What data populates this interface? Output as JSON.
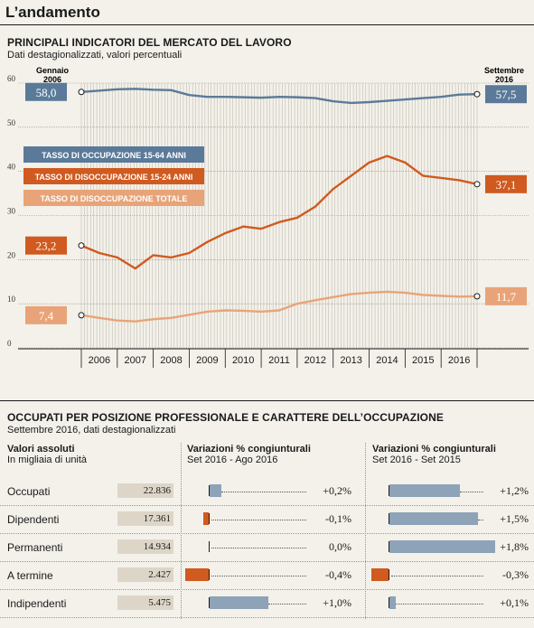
{
  "section_title": "L’andamento",
  "chart_title": "PRINCIPALI INDICATORI DEL MERCATO DEL LAVORO",
  "chart_subtitle": "Dati destagionalizzati, valori percentuali",
  "chart_data": {
    "type": "line",
    "title": "PRINCIPALI INDICATORI DEL MERCATO DEL LAVORO",
    "subtitle": "Dati destagionalizzati, valori percentuali",
    "start_label": "Gennaio 2006",
    "end_label": "Settembre 2016",
    "ylim": [
      0,
      60
    ],
    "yticks": [
      0,
      10,
      20,
      30,
      40,
      50,
      60
    ],
    "xlabels": [
      "2006",
      "2007",
      "2008",
      "2009",
      "2010",
      "2011",
      "2012",
      "2013",
      "2014",
      "2015",
      "2016"
    ],
    "grid": true,
    "legend_position": "left",
    "series": [
      {
        "name": "TASSO DI OCCUPAZIONE 15-64 ANNI",
        "color": "#5b7a99",
        "start_label": "58,0",
        "end_label": "57,5",
        "values": [
          58.0,
          58.3,
          58.6,
          58.7,
          58.5,
          58.4,
          57.3,
          56.9,
          56.9,
          56.8,
          56.7,
          56.9,
          56.8,
          56.6,
          55.9,
          55.5,
          55.7,
          56.0,
          56.3,
          56.6,
          56.9,
          57.4,
          57.5
        ]
      },
      {
        "name": "TASSO DI DISOCCUPAZIONE 15-24 ANNI",
        "color": "#d05a1f",
        "start_label": "23,2",
        "end_label": "37,1",
        "values": [
          23.2,
          21.5,
          20.5,
          18.0,
          21.0,
          20.5,
          21.5,
          24.0,
          26.0,
          27.5,
          27.0,
          28.5,
          29.5,
          32.0,
          36.0,
          39.0,
          42.0,
          43.5,
          42.0,
          39.0,
          38.5,
          38.0,
          37.1
        ]
      },
      {
        "name": "TASSO DI DISOCCUPAZIONE TOTALE",
        "color": "#e8a478",
        "start_label": "7,4",
        "end_label": "11,7",
        "values": [
          7.4,
          6.8,
          6.2,
          6.0,
          6.5,
          6.8,
          7.5,
          8.2,
          8.5,
          8.4,
          8.2,
          8.5,
          10.0,
          10.8,
          11.5,
          12.2,
          12.5,
          12.7,
          12.5,
          12.0,
          11.8,
          11.6,
          11.7
        ]
      }
    ]
  },
  "table": {
    "title": "OCCUPATI PER POSIZIONE PROFESSIONALE E CARATTERE DELL’OCCUPAZIONE",
    "subtitle": "Settembre 2016, dati destagionalizzati",
    "col1_head": "Valori assoluti",
    "col1_sub": "In migliaia di unità",
    "col2_head": "Variazioni % congiunturali",
    "col2_sub": "Set 2016 - Ago 2016",
    "col3_head": "Variazioni % congiunturali",
    "col3_sub": "Set 2016 - Set 2015",
    "rows": [
      {
        "label": "Occupati",
        "value": "22.836",
        "v1": 0.2,
        "v1_label": "+0,2%",
        "v2": 1.2,
        "v2_label": "+1,2%"
      },
      {
        "label": "Dipendenti",
        "value": "17.361",
        "v1": -0.1,
        "v1_label": "-0,1%",
        "v2": 1.5,
        "v2_label": "+1,5%"
      },
      {
        "label": "Permanenti",
        "value": "14.934",
        "v1": 0.0,
        "v1_label": "0,0%",
        "v2": 1.8,
        "v2_label": "+1,8%"
      },
      {
        "label": "A termine",
        "value": "2.427",
        "v1": -0.4,
        "v1_label": "-0,4%",
        "v2": -0.3,
        "v2_label": "-0,3%"
      },
      {
        "label": "Indipendenti",
        "value": "5.475",
        "v1": 1.0,
        "v1_label": "+1,0%",
        "v2": 0.1,
        "v2_label": "+0,1%"
      }
    ],
    "pos_color": "#8ea3b8",
    "neg_color": "#d05a1f"
  }
}
